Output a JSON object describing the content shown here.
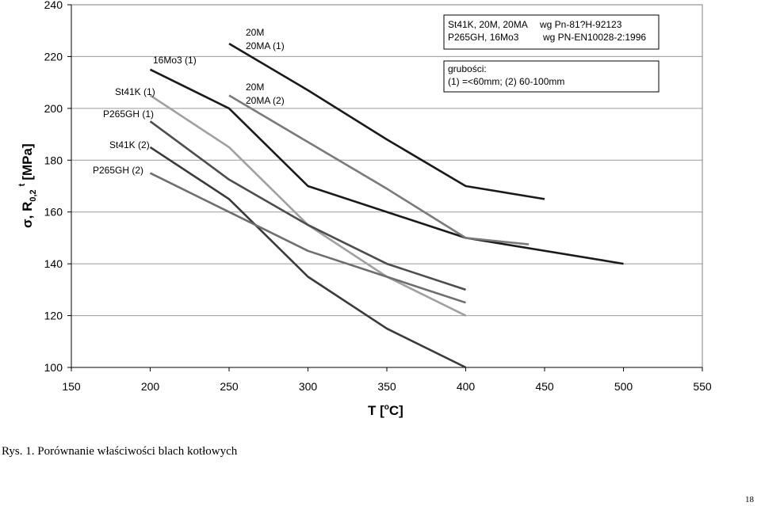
{
  "chart_data": {
    "type": "line",
    "xlabel_main": "T [",
    "xlabel_sup": "o",
    "xlabel_unit": "C]",
    "ylabel_sigma": "σ, R",
    "ylabel_sub": "0,2",
    "ylabel_sup": "t",
    "ylabel_unit": "[MPa]",
    "xlim": [
      150,
      550
    ],
    "ylim": [
      100,
      240
    ],
    "x_ticks": [
      "150",
      "200",
      "250",
      "300",
      "350",
      "400",
      "450",
      "500",
      "550"
    ],
    "y_ticks": [
      "100",
      "120",
      "140",
      "160",
      "180",
      "200",
      "220",
      "240"
    ],
    "grid_y": true,
    "series": [
      {
        "name": "20M 20MA (1)",
        "color": "#1a1a1a",
        "points": [
          [
            250,
            225
          ],
          [
            300,
            207
          ],
          [
            350,
            188
          ],
          [
            400,
            170
          ],
          [
            450,
            165
          ]
        ]
      },
      {
        "name": "16Mo3 (1)",
        "color": "#1a1a1a",
        "points": [
          [
            200,
            215
          ],
          [
            250,
            200
          ],
          [
            300,
            170
          ],
          [
            400,
            150
          ],
          [
            500,
            140
          ]
        ]
      },
      {
        "name": "20M 20MA (2)",
        "color": "#7a7a7a",
        "points": [
          [
            250,
            205
          ],
          [
            300,
            187
          ],
          [
            350,
            169
          ],
          [
            400,
            150
          ],
          [
            440,
            147.5
          ]
        ]
      },
      {
        "name": "St41K (1)",
        "color": "#a0a0a0",
        "points": [
          [
            200,
            205
          ],
          [
            250,
            185
          ],
          [
            300,
            155
          ],
          [
            350,
            135
          ],
          [
            400,
            120
          ]
        ]
      },
      {
        "name": "P265GH (1)",
        "color": "#4d4d4d",
        "points": [
          [
            200,
            195
          ],
          [
            250,
            172.5
          ],
          [
            300,
            155
          ],
          [
            350,
            140
          ],
          [
            400,
            130
          ]
        ]
      },
      {
        "name": "St41K (2)",
        "color": "#3a3a3a",
        "points": [
          [
            200,
            185
          ],
          [
            250,
            165
          ],
          [
            300,
            135
          ],
          [
            350,
            115
          ],
          [
            400,
            100
          ]
        ]
      },
      {
        "name": "P265GH (2)",
        "color": "#6e6e6e",
        "points": [
          [
            200,
            175
          ],
          [
            250,
            160
          ],
          [
            300,
            145
          ],
          [
            350,
            135
          ],
          [
            400,
            125
          ]
        ]
      }
    ],
    "line_labels": [
      {
        "text": "16Mo3 (1)"
      },
      {
        "text": "20M"
      },
      {
        "text": "20MA (1)"
      },
      {
        "text": "20M"
      },
      {
        "text": "20MA (2)"
      },
      {
        "text": "St41K (1)"
      },
      {
        "text": "P265GH (1)"
      },
      {
        "text": "St41K (2)"
      },
      {
        "text": "P265GH (2)"
      }
    ],
    "annotation_box_1": {
      "line1_a": "St41K, 20M, 20MA",
      "line1_b": "wg Pn-81?H-92123",
      "line2_a": "P265GH, 16Mo3",
      "line2_b": "wg PN-EN10028-2:1996"
    },
    "annotation_box_2": {
      "line1": "grubości:",
      "line2": "(1) =<60mm; (2) 60-100mm"
    }
  },
  "caption": "Rys. 1. Porównanie właściwości blach kotłowych",
  "page_number": "18"
}
